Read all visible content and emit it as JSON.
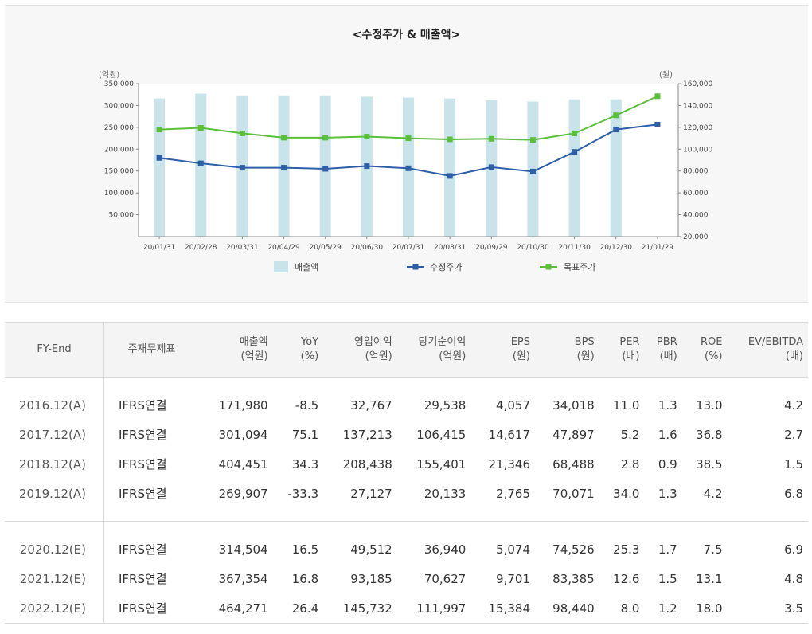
{
  "chart_data": {
    "type": "bar",
    "title": "<수정주가 & 매출액>",
    "left_unit": "(억원)",
    "right_unit": "(원)",
    "categories": [
      "20/01/31",
      "20/02/28",
      "20/03/31",
      "20/04/29",
      "20/05/29",
      "20/06/30",
      "20/07/31",
      "20/08/31",
      "20/09/29",
      "20/10/30",
      "20/11/30",
      "20/12/30",
      "21/01/29"
    ],
    "left_ticks": [
      "350,000",
      "300,000",
      "250,000",
      "200,000",
      "150,000",
      "100,000",
      "50,000"
    ],
    "right_ticks": [
      "160,000",
      "140,000",
      "120,000",
      "100,000",
      "80,000",
      "60,000",
      "40,000",
      "20,000"
    ],
    "left_ylim": [
      0,
      350000
    ],
    "right_ylim": [
      20000,
      160000
    ],
    "bar_series": {
      "name": "매출액",
      "axis": "left",
      "color": "#c8e4ea",
      "values": [
        316000,
        327000,
        323000,
        323000,
        323000,
        320000,
        318000,
        316000,
        312000,
        309000,
        314000,
        314000,
        null
      ]
    },
    "line_series": [
      {
        "name": "수정주가",
        "axis": "right",
        "color": "#2e5ea8",
        "values": [
          92000,
          87000,
          83000,
          83000,
          82000,
          84500,
          82500,
          75500,
          83500,
          79500,
          97500,
          118000,
          122500
        ]
      },
      {
        "name": "목표주가",
        "axis": "right",
        "color": "#5cbf3a",
        "values": [
          118000,
          119500,
          114500,
          110500,
          110500,
          111500,
          110000,
          109000,
          109500,
          108500,
          114500,
          131000,
          148500
        ]
      }
    ],
    "legend": [
      "매출액",
      "수정주가",
      "목표주가"
    ],
    "legend_position": "bottom",
    "grid": false
  },
  "table": {
    "headers": [
      {
        "line1": "FY-End",
        "line2": ""
      },
      {
        "line1": "주재무제표",
        "line2": ""
      },
      {
        "line1": "매출액",
        "line2": "(억원)"
      },
      {
        "line1": "YoY",
        "line2": "(%)"
      },
      {
        "line1": "영업이익",
        "line2": "(억원)"
      },
      {
        "line1": "당기순이익",
        "line2": "(억원)"
      },
      {
        "line1": "EPS",
        "line2": "(원)"
      },
      {
        "line1": "BPS",
        "line2": "(원)"
      },
      {
        "line1": "PER",
        "line2": "(배)"
      },
      {
        "line1": "PBR",
        "line2": "(배)"
      },
      {
        "line1": "ROE",
        "line2": "(%)"
      },
      {
        "line1": "EV/EBITDA",
        "line2": "(배)"
      }
    ],
    "actual_rows": [
      [
        "2016.12(A)",
        "IFRS연결",
        "171,980",
        "-8.5",
        "32,767",
        "29,538",
        "4,057",
        "34,018",
        "11.0",
        "1.3",
        "13.0",
        "4.2"
      ],
      [
        "2017.12(A)",
        "IFRS연결",
        "301,094",
        "75.1",
        "137,213",
        "106,415",
        "14,617",
        "47,897",
        "5.2",
        "1.6",
        "36.8",
        "2.7"
      ],
      [
        "2018.12(A)",
        "IFRS연결",
        "404,451",
        "34.3",
        "208,438",
        "155,401",
        "21,346",
        "68,488",
        "2.8",
        "0.9",
        "38.5",
        "1.5"
      ],
      [
        "2019.12(A)",
        "IFRS연결",
        "269,907",
        "-33.3",
        "27,127",
        "20,133",
        "2,765",
        "70,071",
        "34.0",
        "1.3",
        "4.2",
        "6.8"
      ]
    ],
    "estimate_rows": [
      [
        "2020.12(E)",
        "IFRS연결",
        "314,504",
        "16.5",
        "49,512",
        "36,940",
        "5,074",
        "74,526",
        "25.3",
        "1.7",
        "7.5",
        "6.9"
      ],
      [
        "2021.12(E)",
        "IFRS연결",
        "367,354",
        "16.8",
        "93,185",
        "70,627",
        "9,701",
        "83,385",
        "12.6",
        "1.5",
        "13.1",
        "4.8"
      ],
      [
        "2022.12(E)",
        "IFRS연결",
        "464,271",
        "26.4",
        "145,732",
        "111,997",
        "15,384",
        "98,440",
        "8.0",
        "1.2",
        "18.0",
        "3.5"
      ]
    ],
    "negative_color": "#e0312e"
  }
}
